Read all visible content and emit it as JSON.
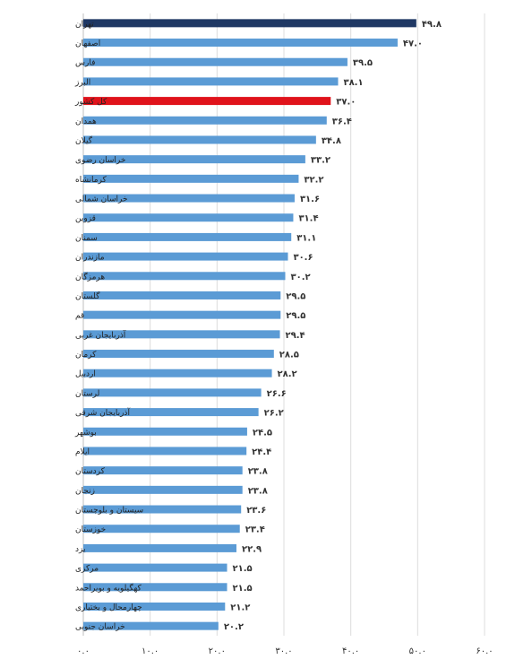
{
  "chart_data": {
    "type": "bar",
    "orientation": "horizontal",
    "categories": [
      "تهران",
      "اصفهان",
      "فارس",
      "البرز",
      "کل کشور",
      "همدان",
      "گیلان",
      "خراسان رضوی",
      "کرمانشاه",
      "خراسان شمالی",
      "قزوین",
      "سمنان",
      "مازندران",
      "هرمزگان",
      "گلستان",
      "قم",
      "آذربایجان غربی",
      "کرمان",
      "اردبیل",
      "لرستان",
      "آذربایجان شرقی",
      "بوشهر",
      "ایلام",
      "کردستان",
      "زنجان",
      "سیستان و بلوچستان",
      "خوزستان",
      "یزد",
      "مرکزی",
      "کهگیلویه و بویراحمد",
      "چهارمحال و بختیاری",
      "خراسان جنوبی"
    ],
    "values": [
      49.8,
      47.0,
      39.5,
      38.1,
      37.0,
      36.4,
      34.8,
      33.2,
      32.2,
      31.6,
      31.4,
      31.1,
      30.6,
      30.2,
      29.5,
      29.5,
      29.4,
      28.5,
      28.2,
      26.6,
      26.2,
      24.5,
      24.4,
      23.8,
      23.8,
      23.6,
      23.4,
      22.9,
      21.5,
      21.5,
      21.2,
      20.2
    ],
    "value_labels": [
      "۴۹.۸",
      "۴۷.۰",
      "۳۹.۵",
      "۳۸.۱",
      "۳۷.۰",
      "۳۶.۴",
      "۳۴.۸",
      "۳۳.۲",
      "۳۲.۲",
      "۳۱.۶",
      "۳۱.۴",
      "۳۱.۱",
      "۳۰.۶",
      "۳۰.۲",
      "۲۹.۵",
      "۲۹.۵",
      "۲۹.۴",
      "۲۸.۵",
      "۲۸.۲",
      "۲۶.۶",
      "۲۶.۲",
      "۲۴.۵",
      "۲۴.۴",
      "۲۳.۸",
      "۲۳.۸",
      "۲۳.۶",
      "۲۳.۴",
      "۲۲.۹",
      "۲۱.۵",
      "۲۱.۵",
      "۲۱.۲",
      "۲۰.۲"
    ],
    "ticks": [
      0,
      10,
      20,
      30,
      40,
      50,
      60
    ],
    "tick_labels": [
      "۰.۰",
      "۱۰.۰",
      "۲۰.۰",
      "۳۰.۰",
      "۴۰.۰",
      "۵۰.۰",
      "۶۰.۰"
    ],
    "xlim": [
      0,
      60
    ],
    "grid": true,
    "colors": {
      "default": "#5b9bd5",
      "highlight_top": "#1f3864",
      "highlight_national": "#e0131b"
    },
    "bar_colors": [
      "highlight_top",
      "default",
      "default",
      "default",
      "highlight_national",
      "default",
      "default",
      "default",
      "default",
      "default",
      "default",
      "default",
      "default",
      "default",
      "default",
      "default",
      "default",
      "default",
      "default",
      "default",
      "default",
      "default",
      "default",
      "default",
      "default",
      "default",
      "default",
      "default",
      "default",
      "default",
      "default",
      "default"
    ]
  }
}
